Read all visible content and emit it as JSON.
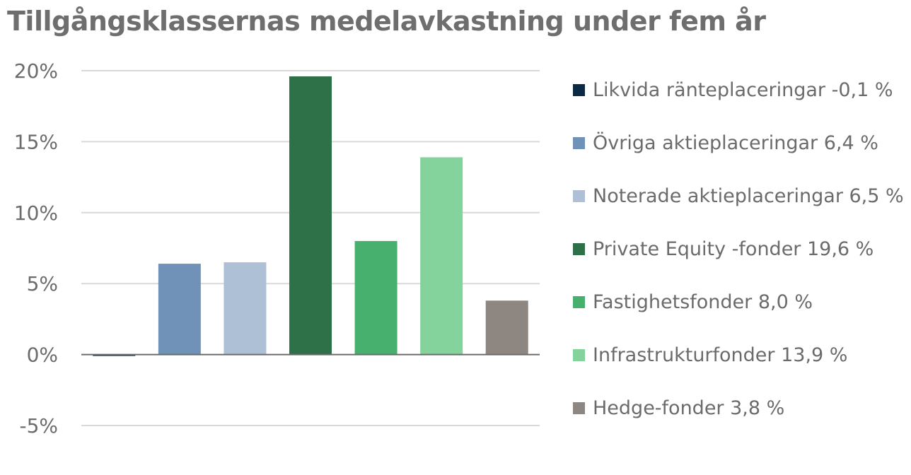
{
  "chart_data": {
    "type": "bar",
    "title": "Tillgångsklassernas medelavkastning under fem år",
    "categories": [
      "Likvida ränteplaceringar -0,1 %",
      "Övriga aktieplaceringar 6,4 %",
      "Noterade aktieplaceringar 6,5 %",
      "Private Equity -fonder 19,6 %",
      "Fastighetsfonder 8,0 %",
      "Infrastrukturfonder 13,9 %",
      "Hedge-fonder 3,8 %"
    ],
    "values": [
      -0.1,
      6.4,
      6.5,
      19.6,
      8.0,
      13.9,
      3.8
    ],
    "colors": [
      "#0c2a43",
      "#7092b8",
      "#adc0d6",
      "#2e7148",
      "#48b06f",
      "#85d39c",
      "#8e8680"
    ],
    "ylim": [
      -5,
      20
    ],
    "yticks": [
      20,
      15,
      10,
      5,
      0,
      -5
    ],
    "ytick_labels": [
      "20%",
      "15%",
      "10%",
      "5%",
      "0%",
      "-5%"
    ],
    "grid": true,
    "legend_position": "right"
  }
}
